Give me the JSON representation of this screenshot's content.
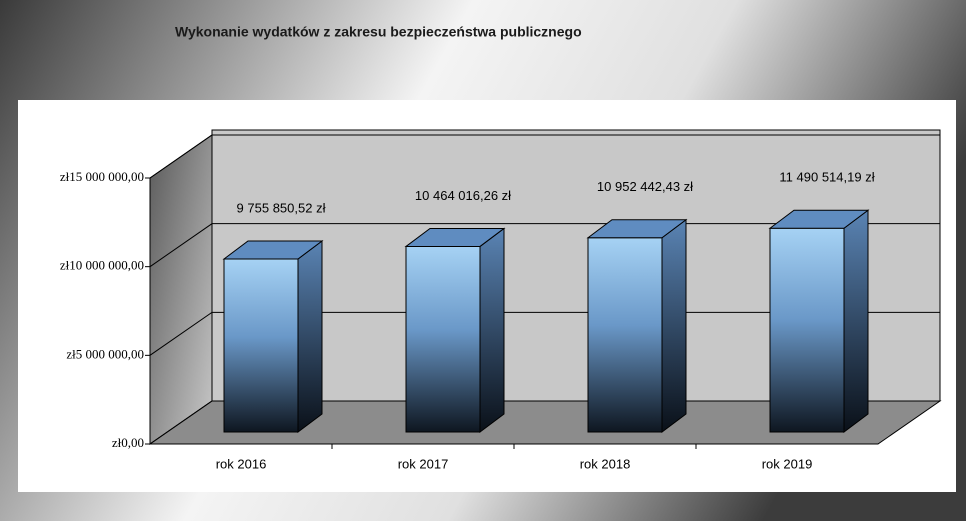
{
  "chart_data": {
    "type": "bar3d",
    "title": "Wykonanie wydatków z zakresu bezpieczeństwa publicznego",
    "categories": [
      "rok 2016",
      "rok 2017",
      "rok 2018",
      "rok 2019"
    ],
    "values": [
      9755850.52,
      10464016.26,
      10952442.43,
      11490514.19
    ],
    "value_labels": [
      "9 755 850,52 zł",
      "10 464 016,26 zł",
      "10 952 442,43 zł",
      "11 490 514,19 zł"
    ],
    "color": "#8cc0ea",
    "ylim": [
      0,
      15000000
    ],
    "yticks": [
      {
        "value": 0,
        "label": "zł0,00"
      },
      {
        "value": 5000000,
        "label": "zł5 000 000,00"
      },
      {
        "value": 10000000,
        "label": "zł10 000 000,00"
      },
      {
        "value": 15000000,
        "label": "zł15 000 000,00"
      }
    ],
    "grid": true
  }
}
